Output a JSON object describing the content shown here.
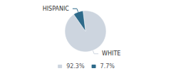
{
  "chart_data": {
    "type": "pie",
    "categories": [
      "WHITE",
      "HISPANIC"
    ],
    "values": [
      92.3,
      7.7
    ],
    "value_labels": [
      "92.3%",
      "7.7%"
    ],
    "colors": [
      "#cdd5df",
      "#2e6a8a"
    ],
    "legend": "bottom"
  }
}
